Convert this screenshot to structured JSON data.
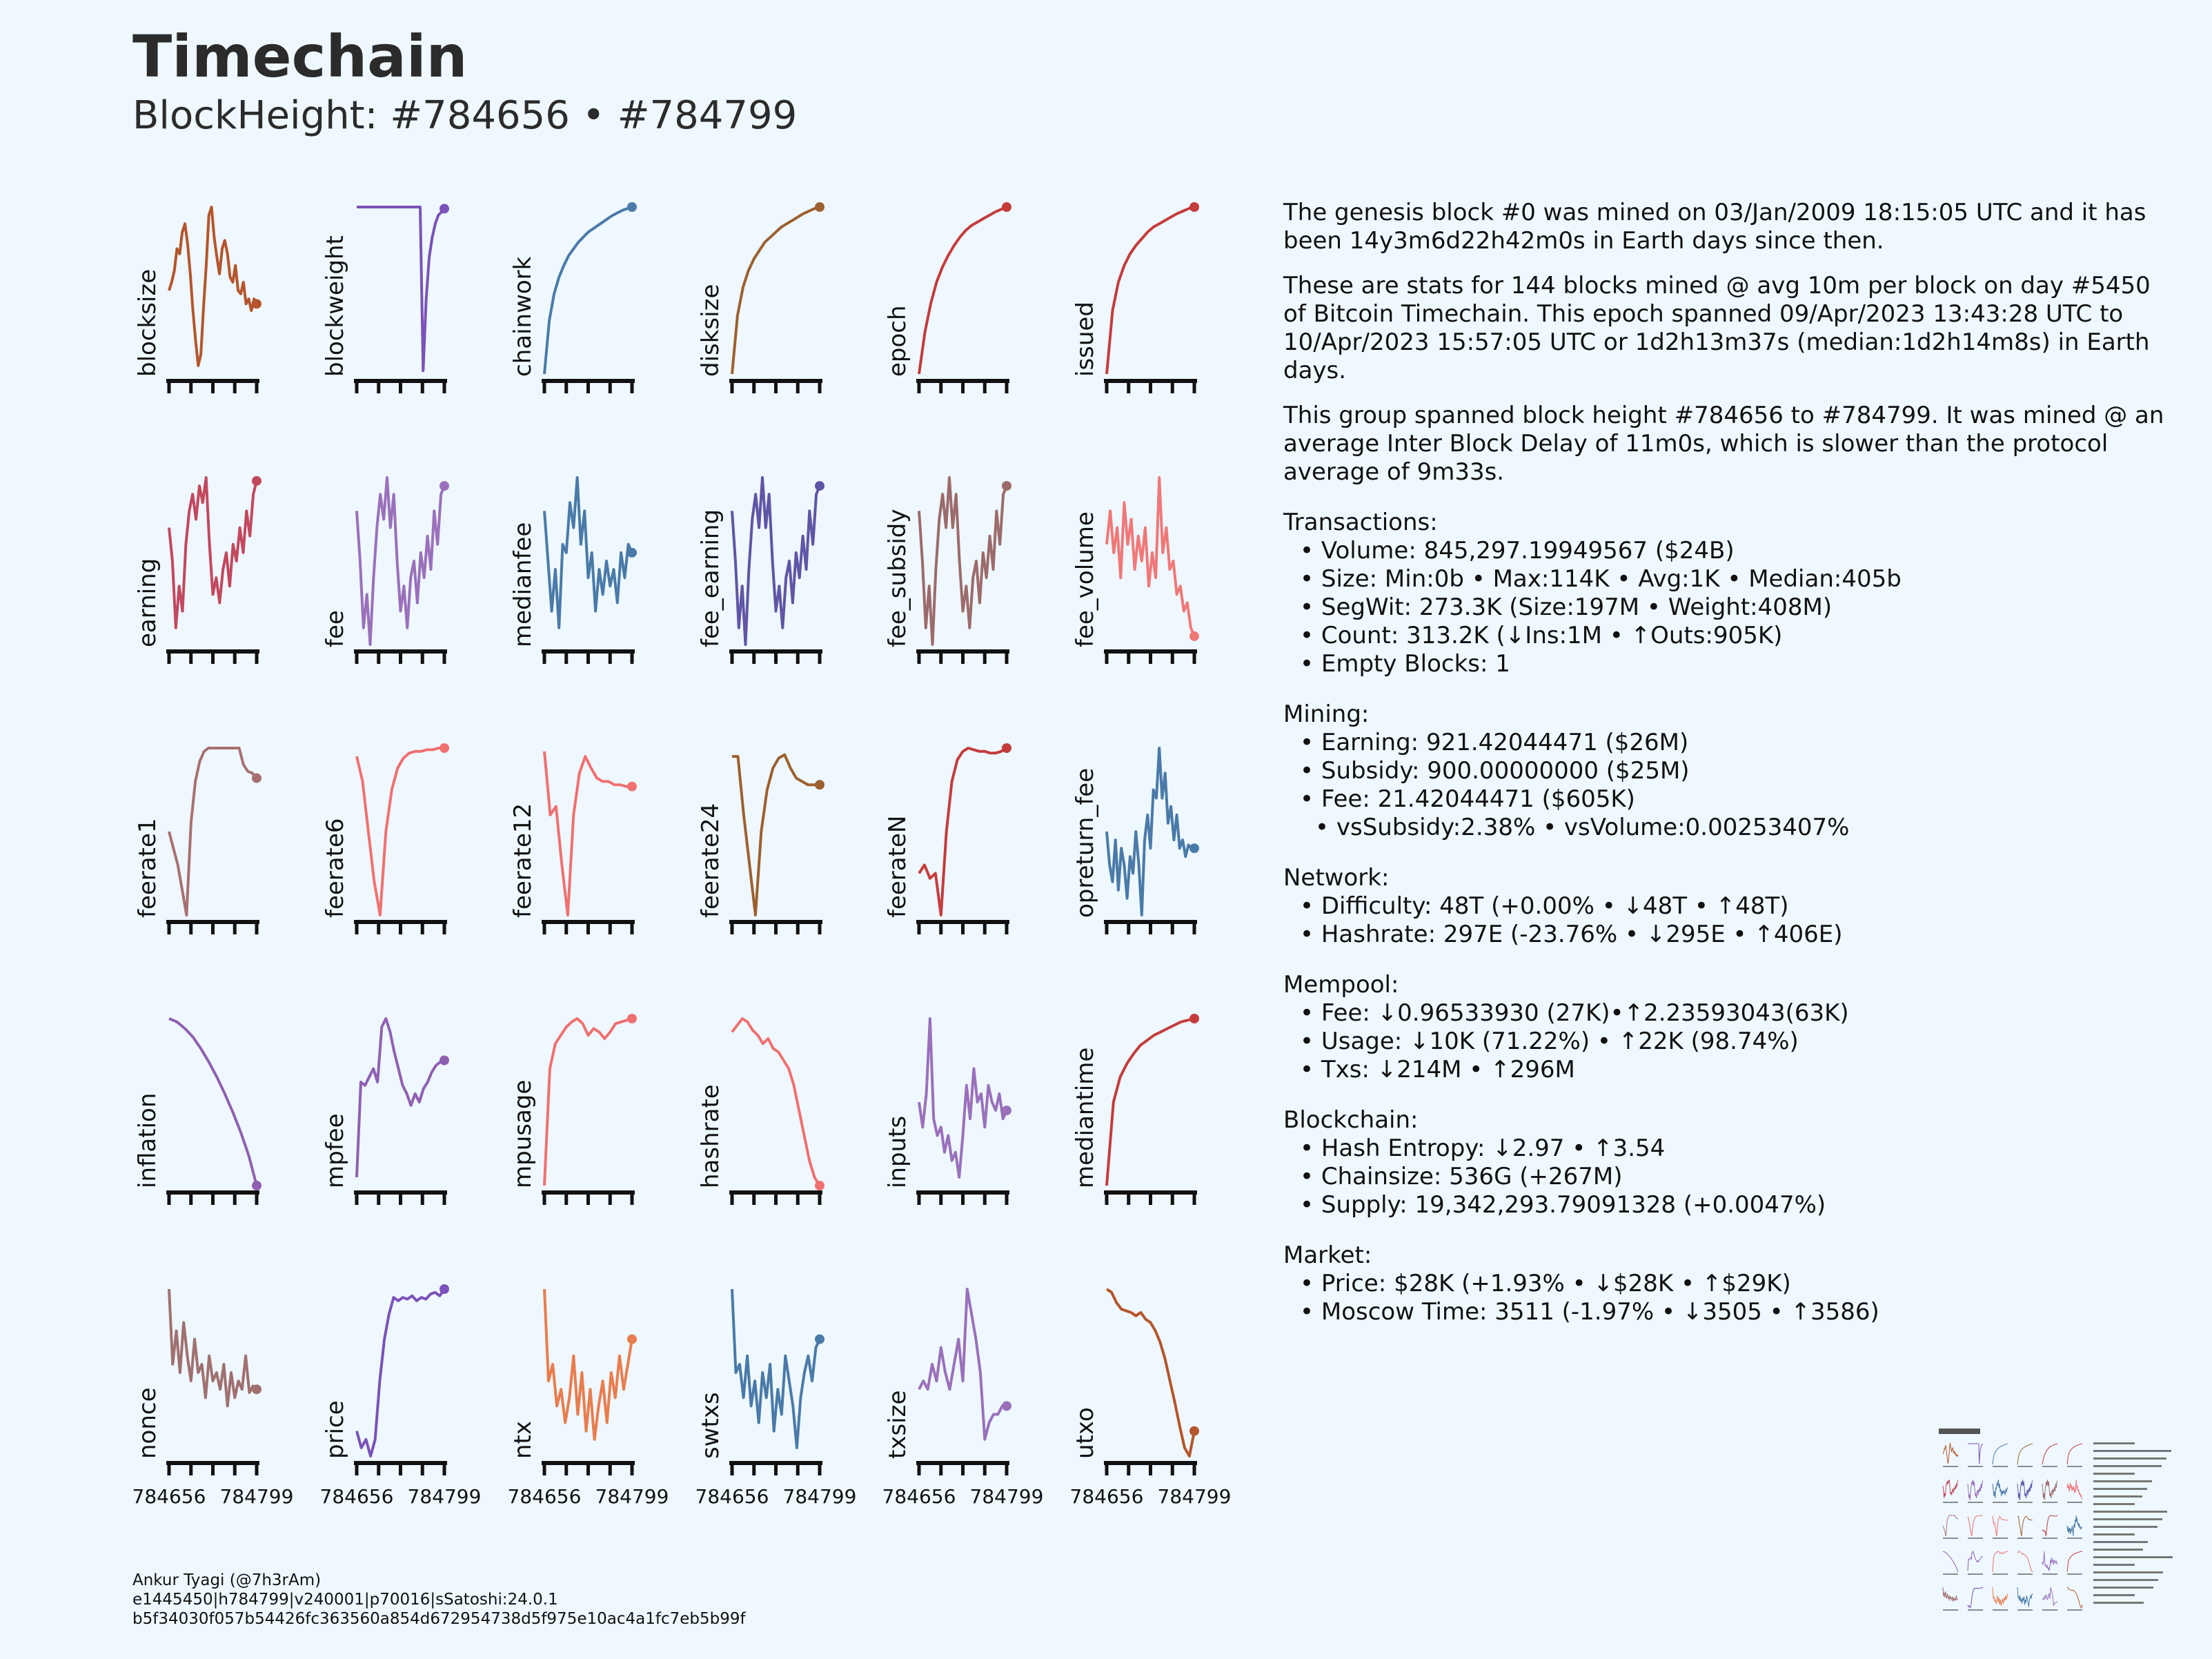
{
  "title": "Timechain",
  "subtitle": "BlockHeight: #784656 • #784799",
  "chart_data": [
    {
      "type": "line",
      "ylabel": "blocksize",
      "color": "#b5552c",
      "values": [
        0.5,
        0.55,
        0.62,
        0.75,
        0.72,
        0.85,
        0.9,
        0.78,
        0.6,
        0.38,
        0.2,
        0.05,
        0.12,
        0.4,
        0.65,
        0.95,
        1.0,
        0.82,
        0.7,
        0.6,
        0.75,
        0.8,
        0.72,
        0.58,
        0.55,
        0.65,
        0.5,
        0.48,
        0.55,
        0.42,
        0.45,
        0.38,
        0.45,
        0.42
      ]
    },
    {
      "type": "line",
      "ylabel": "blockweight",
      "color": "#7b52b8",
      "values": [
        1.0,
        1.0,
        1.0,
        1.0,
        1.0,
        1.0,
        1.0,
        1.0,
        1.0,
        1.0,
        1.0,
        1.0,
        1.0,
        1.0,
        1.0,
        1.0,
        1.0,
        1.0,
        1.0,
        1.0,
        1.0,
        1.0,
        0.02,
        0.45,
        0.7,
        0.82,
        0.9,
        0.95,
        0.97,
        0.99
      ]
    },
    {
      "type": "line",
      "ylabel": "chainwork",
      "color": "#4a7aa8",
      "values": [
        0.0,
        0.32,
        0.48,
        0.58,
        0.65,
        0.71,
        0.75,
        0.79,
        0.82,
        0.85,
        0.87,
        0.89,
        0.91,
        0.93,
        0.95,
        0.965,
        0.98,
        0.99,
        1.0
      ]
    },
    {
      "type": "line",
      "ylabel": "disksize",
      "color": "#9c6030",
      "values": [
        0.0,
        0.35,
        0.52,
        0.62,
        0.69,
        0.74,
        0.79,
        0.82,
        0.85,
        0.88,
        0.9,
        0.92,
        0.94,
        0.96,
        0.975,
        0.99,
        1.0
      ]
    },
    {
      "type": "line",
      "ylabel": "epoch",
      "color": "#c43c3c",
      "values": [
        0.0,
        0.25,
        0.42,
        0.55,
        0.64,
        0.71,
        0.77,
        0.82,
        0.86,
        0.89,
        0.91,
        0.93,
        0.95,
        0.97,
        0.985,
        1.0
      ]
    },
    {
      "type": "line",
      "ylabel": "issued",
      "color": "#c43c3c",
      "values": [
        0.0,
        0.38,
        0.55,
        0.65,
        0.72,
        0.77,
        0.81,
        0.85,
        0.88,
        0.9,
        0.92,
        0.94,
        0.96,
        0.975,
        0.99,
        1.0
      ]
    },
    {
      "type": "line",
      "ylabel": "earning",
      "color": "#c2485e",
      "values": [
        0.7,
        0.5,
        0.1,
        0.35,
        0.2,
        0.6,
        0.8,
        0.9,
        0.75,
        0.95,
        0.85,
        1.0,
        0.6,
        0.3,
        0.4,
        0.25,
        0.45,
        0.55,
        0.35,
        0.6,
        0.5,
        0.7,
        0.55,
        0.8,
        0.65,
        0.9,
        0.98
      ]
    },
    {
      "type": "line",
      "ylabel": "fee",
      "color": "#9a70bb",
      "values": [
        0.8,
        0.5,
        0.1,
        0.3,
        0.0,
        0.4,
        0.7,
        0.9,
        0.75,
        1.0,
        0.7,
        0.9,
        0.5,
        0.2,
        0.35,
        0.1,
        0.4,
        0.5,
        0.25,
        0.55,
        0.4,
        0.65,
        0.45,
        0.8,
        0.6,
        0.9,
        0.95
      ]
    },
    {
      "type": "line",
      "ylabel": "medianfee",
      "color": "#4a7aa8",
      "values": [
        0.8,
        0.5,
        0.2,
        0.45,
        0.1,
        0.6,
        0.55,
        0.85,
        0.7,
        1.0,
        0.6,
        0.8,
        0.4,
        0.55,
        0.2,
        0.45,
        0.3,
        0.5,
        0.35,
        0.45,
        0.25,
        0.55,
        0.4,
        0.6,
        0.55
      ]
    },
    {
      "type": "line",
      "ylabel": "fee_earning",
      "color": "#6055a5",
      "values": [
        0.8,
        0.5,
        0.1,
        0.35,
        0.0,
        0.45,
        0.75,
        0.9,
        0.7,
        1.0,
        0.7,
        0.9,
        0.5,
        0.2,
        0.35,
        0.1,
        0.4,
        0.5,
        0.25,
        0.55,
        0.4,
        0.65,
        0.45,
        0.8,
        0.6,
        0.9,
        0.95
      ]
    },
    {
      "type": "line",
      "ylabel": "fee_subsidy",
      "color": "#9c6b6b",
      "values": [
        0.8,
        0.5,
        0.1,
        0.35,
        0.0,
        0.45,
        0.75,
        0.9,
        0.7,
        1.0,
        0.7,
        0.9,
        0.5,
        0.2,
        0.35,
        0.1,
        0.4,
        0.5,
        0.25,
        0.55,
        0.4,
        0.65,
        0.45,
        0.8,
        0.6,
        0.9,
        0.95
      ]
    },
    {
      "type": "line",
      "ylabel": "fee_volume",
      "color": "#f07878",
      "values": [
        0.6,
        0.8,
        0.55,
        0.7,
        0.4,
        0.85,
        0.6,
        0.75,
        0.45,
        0.65,
        0.5,
        0.7,
        0.35,
        0.55,
        0.4,
        1.0,
        0.55,
        0.7,
        0.45,
        0.5,
        0.3,
        0.35,
        0.2,
        0.25,
        0.1,
        0.05
      ]
    },
    {
      "type": "line",
      "ylabel": "feerate1",
      "color": "#a87070",
      "values": [
        0.5,
        0.4,
        0.3,
        0.15,
        0.0,
        0.55,
        0.8,
        0.92,
        0.98,
        1.0,
        1.0,
        1.0,
        1.0,
        1.0,
        1.0,
        1.0,
        1.0,
        0.9,
        0.86,
        0.85,
        0.82
      ]
    },
    {
      "type": "line",
      "ylabel": "feerate6",
      "color": "#f07070",
      "values": [
        0.95,
        0.8,
        0.5,
        0.2,
        0.0,
        0.5,
        0.75,
        0.88,
        0.94,
        0.97,
        0.98,
        0.98,
        0.99,
        0.99,
        1.0,
        1.0
      ]
    },
    {
      "type": "line",
      "ylabel": "feerate12",
      "color": "#f07070",
      "values": [
        0.98,
        0.6,
        0.65,
        0.3,
        0.0,
        0.6,
        0.85,
        0.95,
        0.88,
        0.82,
        0.8,
        0.8,
        0.78,
        0.78,
        0.77,
        0.77
      ]
    },
    {
      "type": "line",
      "ylabel": "feerate24",
      "color": "#9c6030",
      "values": [
        0.95,
        0.95,
        0.6,
        0.3,
        0.0,
        0.5,
        0.75,
        0.88,
        0.94,
        0.96,
        0.88,
        0.82,
        0.8,
        0.78,
        0.78,
        0.78
      ]
    },
    {
      "type": "line",
      "ylabel": "feerateN",
      "color": "#c43c3c",
      "values": [
        0.25,
        0.3,
        0.22,
        0.25,
        0.0,
        0.5,
        0.8,
        0.93,
        0.98,
        1.0,
        0.99,
        0.98,
        0.98,
        0.97,
        0.97,
        0.98,
        1.0
      ]
    },
    {
      "type": "line",
      "ylabel": "opreturn_fee",
      "color": "#4a7aa8",
      "values": [
        0.5,
        0.3,
        0.2,
        0.45,
        0.15,
        0.4,
        0.3,
        0.1,
        0.35,
        0.25,
        0.5,
        0.3,
        0.0,
        0.45,
        0.6,
        0.4,
        0.75,
        0.7,
        1.0,
        0.7,
        0.85,
        0.55,
        0.65,
        0.45,
        0.6,
        0.4,
        0.45,
        0.35,
        0.42,
        0.4,
        0.4
      ]
    },
    {
      "type": "line",
      "ylabel": "inflation",
      "color": "#9060b0",
      "values": [
        1.0,
        0.98,
        0.94,
        0.89,
        0.82,
        0.74,
        0.65,
        0.55,
        0.44,
        0.32,
        0.18,
        0.0
      ]
    },
    {
      "type": "line",
      "ylabel": "mpfee",
      "color": "#9060b0",
      "values": [
        0.05,
        0.62,
        0.6,
        0.65,
        0.7,
        0.62,
        0.95,
        1.0,
        0.92,
        0.8,
        0.7,
        0.6,
        0.55,
        0.48,
        0.55,
        0.5,
        0.58,
        0.62,
        0.68,
        0.72,
        0.74,
        0.75
      ]
    },
    {
      "type": "line",
      "ylabel": "mpusage",
      "color": "#f07070",
      "values": [
        0.0,
        0.7,
        0.85,
        0.9,
        0.95,
        0.98,
        1.0,
        0.97,
        0.9,
        0.94,
        0.92,
        0.88,
        0.92,
        0.97,
        0.98,
        0.99,
        1.0
      ]
    },
    {
      "type": "line",
      "ylabel": "hashrate",
      "color": "#f07070",
      "values": [
        0.92,
        0.96,
        1.0,
        0.98,
        0.93,
        0.9,
        0.85,
        0.88,
        0.82,
        0.8,
        0.75,
        0.7,
        0.6,
        0.45,
        0.3,
        0.15,
        0.05,
        0.0
      ]
    },
    {
      "type": "line",
      "ylabel": "inputs",
      "color": "#9a70bb",
      "values": [
        0.5,
        0.35,
        0.55,
        1.0,
        0.4,
        0.3,
        0.35,
        0.2,
        0.3,
        0.15,
        0.2,
        0.05,
        0.3,
        0.6,
        0.4,
        0.7,
        0.5,
        0.55,
        0.35,
        0.6,
        0.5,
        0.45,
        0.55,
        0.4,
        0.45
      ]
    },
    {
      "type": "line",
      "ylabel": "mediantime",
      "color": "#c43c3c",
      "values": [
        0.0,
        0.5,
        0.65,
        0.73,
        0.79,
        0.84,
        0.87,
        0.9,
        0.92,
        0.94,
        0.96,
        0.98,
        0.99,
        1.0
      ]
    },
    {
      "type": "line",
      "ylabel": "nonce",
      "color": "#a07070",
      "values": [
        1.0,
        0.55,
        0.75,
        0.5,
        0.8,
        0.6,
        0.45,
        0.7,
        0.5,
        0.55,
        0.35,
        0.6,
        0.45,
        0.5,
        0.4,
        0.55,
        0.3,
        0.5,
        0.35,
        0.45,
        0.4,
        0.6,
        0.38,
        0.42,
        0.4
      ]
    },
    {
      "type": "line",
      "ylabel": "price",
      "color": "#7b52b8",
      "values": [
        0.15,
        0.05,
        0.1,
        0.0,
        0.1,
        0.45,
        0.7,
        0.85,
        0.95,
        0.93,
        0.95,
        0.94,
        0.96,
        0.93,
        0.95,
        0.94,
        0.97,
        0.98,
        0.96,
        1.0
      ]
    },
    {
      "type": "line",
      "ylabel": "ntx",
      "color": "#e87d4e",
      "values": [
        1.0,
        0.45,
        0.55,
        0.3,
        0.4,
        0.2,
        0.35,
        0.6,
        0.25,
        0.5,
        0.15,
        0.4,
        0.1,
        0.3,
        0.45,
        0.2,
        0.5,
        0.35,
        0.6,
        0.4,
        0.55,
        0.7
      ]
    },
    {
      "type": "line",
      "ylabel": "swtxs",
      "color": "#4a7aa8",
      "values": [
        1.0,
        0.5,
        0.55,
        0.35,
        0.6,
        0.3,
        0.45,
        0.2,
        0.5,
        0.35,
        0.55,
        0.15,
        0.4,
        0.25,
        0.6,
        0.45,
        0.3,
        0.05,
        0.35,
        0.5,
        0.6,
        0.45,
        0.65,
        0.7
      ]
    },
    {
      "type": "line",
      "ylabel": "txsize",
      "color": "#9a70bb",
      "values": [
        0.4,
        0.45,
        0.4,
        0.55,
        0.45,
        0.65,
        0.5,
        0.4,
        0.55,
        0.7,
        0.45,
        1.0,
        0.85,
        0.7,
        0.5,
        0.1,
        0.2,
        0.25,
        0.25,
        0.3,
        0.3
      ]
    },
    {
      "type": "line",
      "ylabel": "utxo",
      "color": "#b5552c",
      "values": [
        1.0,
        0.98,
        0.92,
        0.88,
        0.87,
        0.86,
        0.84,
        0.86,
        0.82,
        0.8,
        0.75,
        0.68,
        0.58,
        0.45,
        0.32,
        0.18,
        0.05,
        0.0,
        0.15
      ]
    }
  ],
  "xticks": {
    "first": "784656",
    "last": "784799"
  },
  "stats": {
    "intro": [
      "The genesis block #0 was mined on 03/Jan/2009 18:15:05 UTC and it has been 14y3m6d22h42m0s in Earth days since then.",
      "These are stats for 144 blocks mined @ avg 10m per block on day #5450 of Bitcoin Timechain. This epoch spanned 09/Apr/2023 13:43:28 UTC to 10/Apr/2023 15:57:05 UTC or 1d2h13m37s (median:1d2h14m8s) in Earth days.",
      "This group spanned block height #784656 to #784799. It was mined @ an average Inter Block Delay of 11m0s, which is slower than the protocol average of 9m33s."
    ],
    "sections": [
      {
        "heading": "Transactions:",
        "items": [
          "• Volume: 845,297.19949567 ($24B)",
          "• Size: Min:0b • Max:114K • Avg:1K • Median:405b",
          "• SegWit: 273.3K (Size:197M • Weight:408M)",
          "• Count: 313.2K (↓Ins:1M • ↑Outs:905K)",
          "• Empty Blocks: 1"
        ]
      },
      {
        "heading": "Mining:",
        "items": [
          "• Earning: 921.42044471 ($26M)",
          "• Subsidy: 900.00000000 ($25M)",
          "• Fee: 21.42044471 ($605K)"
        ],
        "subitems": [
          "• vsSubsidy:2.38% • vsVolume:0.00253407%"
        ]
      },
      {
        "heading": "Network:",
        "items": [
          "• Difficulty: 48T (+0.00% • ↓48T • ↑48T)",
          "• Hashrate: 297E (-23.76% • ↓295E • ↑406E)"
        ]
      },
      {
        "heading": "Mempool:",
        "items": [
          "• Fee: ↓0.96533930 (27K)•↑2.23593043(63K)",
          "• Usage: ↓10K (71.22%) • ↑22K (98.74%)",
          "• Txs: ↓214M • ↑296M"
        ]
      },
      {
        "heading": "Blockchain:",
        "items": [
          "• Hash Entropy: ↓2.97 • ↑3.54",
          "• Chainsize: 536G (+267M)",
          "• Supply: 19,342,293.79091328 (+0.0047%)"
        ]
      },
      {
        "heading": "Market:",
        "items": [
          "• Price: $28K (+1.93% • ↓$28K • ↑$29K)",
          "• Moscow Time: 3511 (-1.97% • ↓3505 • ↑3586)"
        ]
      }
    ]
  },
  "footer": {
    "author": "Ankur Tyagi (@7h3rAm)",
    "meta": "e1445450|h784799|v240001|p70016|sSatoshi:24.0.1",
    "hash": "b5f34030f057b54426fc363560a854d672954738d5f975e10ac4a1fc7eb5b99f"
  }
}
